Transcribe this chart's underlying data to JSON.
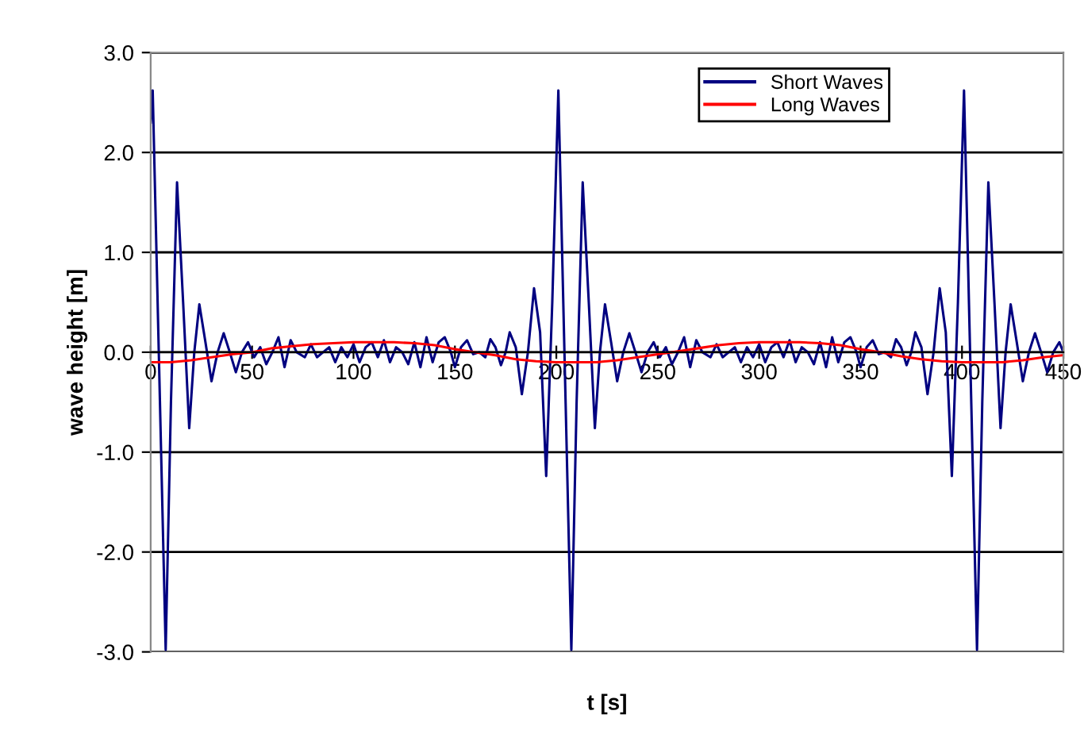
{
  "chart_data": {
    "type": "line",
    "xlabel": "t [s]",
    "ylabel": "wave height [m]",
    "xlim": [
      0,
      450
    ],
    "xticks": [
      0,
      50,
      100,
      150,
      200,
      250,
      300,
      350,
      400,
      450
    ],
    "ylim": [
      -3,
      3
    ],
    "yticks": [
      {
        "value": -3,
        "label": "-3.0"
      },
      {
        "value": -2,
        "label": "-2.0"
      },
      {
        "value": -1,
        "label": "-1.0"
      },
      {
        "value": 0,
        "label": "0.0"
      },
      {
        "value": 1,
        "label": "1.0"
      },
      {
        "value": 2,
        "label": "2.0"
      },
      {
        "value": 3,
        "label": "3.0"
      }
    ],
    "grid": "y",
    "legend": "top right",
    "marker": "none",
    "line_style": "solid",
    "series": [
      {
        "name": "Short Waves",
        "color": "#000080",
        "x": [
          0,
          1,
          4,
          7.4,
          10,
          13,
          16,
          19,
          21.5,
          24,
          27,
          30,
          33,
          36,
          39,
          42,
          45,
          48,
          51,
          54,
          57,
          60,
          63,
          66,
          69,
          72,
          76,
          79,
          82,
          85,
          88,
          91,
          94,
          97,
          100,
          103,
          106,
          109,
          112,
          115,
          118,
          121,
          124,
          127,
          130,
          133,
          136,
          139,
          142,
          145,
          148,
          150,
          153,
          156,
          159,
          162,
          165,
          167.5,
          170,
          172.7,
          175,
          177,
          180,
          183,
          186,
          189,
          192,
          195,
          198,
          201,
          204,
          207.4,
          210,
          213,
          216,
          219,
          221.5,
          224,
          227,
          230,
          233,
          236,
          239,
          242,
          245,
          248,
          251,
          254,
          257,
          260,
          263,
          266,
          269,
          272,
          276,
          279,
          282,
          285,
          288,
          291,
          294,
          297,
          300,
          303,
          306,
          309,
          312,
          315,
          318,
          321,
          324,
          327,
          330,
          333,
          336,
          339,
          342,
          345,
          348,
          350,
          353,
          356,
          359,
          362,
          365,
          367.5,
          370,
          372.7,
          375,
          377,
          380,
          383,
          386,
          389,
          392,
          395,
          398,
          401,
          404,
          407.4,
          410,
          413,
          416,
          419,
          421.5,
          424,
          427,
          430,
          433,
          436,
          439,
          442,
          445,
          448,
          450
        ],
        "values": [
          2.3,
          2.62,
          0.0,
          -2.98,
          -0.5,
          1.7,
          0.5,
          -0.76,
          0.0,
          0.48,
          0.1,
          -0.29,
          0.0,
          0.19,
          0.0,
          -0.2,
          0.0,
          0.1,
          -0.05,
          0.05,
          -0.12,
          0.0,
          0.15,
          -0.15,
          0.12,
          0.0,
          -0.05,
          0.08,
          -0.05,
          0.0,
          0.05,
          -0.1,
          0.05,
          -0.05,
          0.08,
          -0.1,
          0.05,
          0.1,
          -0.05,
          0.12,
          -0.1,
          0.05,
          0.0,
          -0.12,
          0.1,
          -0.15,
          0.15,
          -0.1,
          0.1,
          0.15,
          0.0,
          -0.15,
          0.05,
          0.12,
          -0.02,
          0.0,
          -0.05,
          0.13,
          0.05,
          -0.13,
          0.0,
          0.2,
          0.05,
          -0.42,
          0.0,
          0.64,
          0.2,
          -1.24,
          0.5,
          2.62,
          0.0,
          -2.98,
          -0.5,
          1.7,
          0.5,
          -0.76,
          0.0,
          0.48,
          0.1,
          -0.29,
          0.0,
          0.19,
          0.0,
          -0.2,
          0.0,
          0.1,
          -0.05,
          0.05,
          -0.12,
          0.0,
          0.15,
          -0.15,
          0.12,
          0.0,
          -0.05,
          0.08,
          -0.05,
          0.0,
          0.05,
          -0.1,
          0.05,
          -0.05,
          0.08,
          -0.1,
          0.05,
          0.1,
          -0.05,
          0.12,
          -0.1,
          0.05,
          0.0,
          -0.12,
          0.1,
          -0.15,
          0.15,
          -0.1,
          0.1,
          0.15,
          0.0,
          -0.15,
          0.05,
          0.12,
          -0.02,
          0.0,
          -0.05,
          0.13,
          0.05,
          -0.13,
          0.0,
          0.2,
          0.05,
          -0.42,
          0.0,
          0.64,
          0.2,
          -1.24,
          0.5,
          2.62,
          0.0,
          -2.98,
          -0.5,
          1.7,
          0.5,
          -0.76,
          0.0,
          0.48,
          0.1,
          -0.29,
          0.0,
          0.19,
          0.0,
          -0.2,
          0.0,
          0.1,
          0.0
        ]
      },
      {
        "name": "Long Waves",
        "color": "#ff0000",
        "x": [
          0,
          10,
          20,
          30,
          40,
          50,
          60,
          70,
          80,
          90,
          100,
          110,
          120,
          130,
          140,
          150,
          160,
          170,
          180,
          190,
          200,
          210,
          220,
          230,
          240,
          250,
          260,
          270,
          280,
          290,
          300,
          310,
          320,
          330,
          340,
          350,
          360,
          370,
          380,
          390,
          400,
          410,
          420,
          430,
          440,
          450
        ],
        "values": [
          -0.1,
          -0.1,
          -0.08,
          -0.05,
          -0.02,
          0.0,
          0.04,
          0.06,
          0.08,
          0.09,
          0.1,
          0.1,
          0.1,
          0.09,
          0.07,
          0.03,
          0.0,
          -0.03,
          -0.07,
          -0.09,
          -0.1,
          -0.1,
          -0.1,
          -0.08,
          -0.05,
          -0.02,
          0.01,
          0.04,
          0.07,
          0.09,
          0.1,
          0.1,
          0.1,
          0.09,
          0.07,
          0.03,
          0.0,
          -0.04,
          -0.07,
          -0.09,
          -0.1,
          -0.1,
          -0.1,
          -0.08,
          -0.05,
          -0.03
        ]
      }
    ]
  }
}
